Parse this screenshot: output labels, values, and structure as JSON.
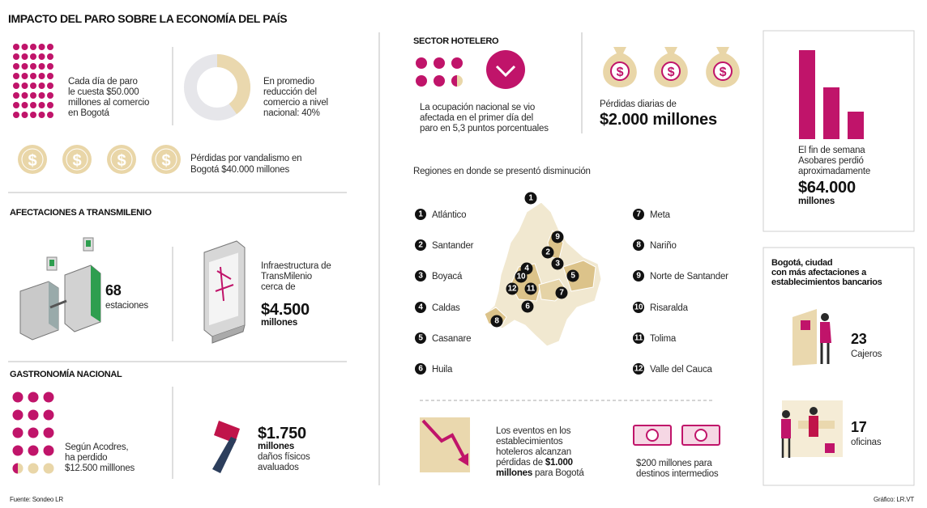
{
  "header": {
    "title": "IMPACTO DEL PARO SOBRE LA ECONOMÍA DEL PAÍS"
  },
  "commerce": {
    "daily_cost": [
      "Cada día de paro",
      "le cuesta $50.000",
      "millones al comercio",
      "en Bogotá"
    ],
    "reduction": [
      "En promedio",
      "reducción del",
      "comercio a nivel",
      "nacional: 40%"
    ],
    "vandalism": [
      "Pérdidas por vandalismo en",
      "Bogotá $40.000 millones"
    ]
  },
  "transmilenio": {
    "title": "AFECTACIONES A TRANSMILENIO",
    "stations_value": "68",
    "stations_label": "estaciones",
    "infra_text": [
      "Infraestructura de",
      "TransMilenio",
      "cerca de"
    ],
    "infra_value": "$4.500",
    "infra_unit": "millones"
  },
  "gastronomy": {
    "title": "GASTRONOMÍA NACIONAL",
    "acodres": [
      "Según Acodres,",
      "ha perdido",
      "$12.500 milllones"
    ],
    "damage_value": "$1.750",
    "damage_unit": "millones",
    "damage_text": [
      "daños físicos",
      "avaluados"
    ]
  },
  "hotel": {
    "title": "SECTOR HOTELERO",
    "occupancy": [
      "La ocupación nacional se vio",
      "afectada en el primer día del",
      "paro en 5,3 puntos porcentuales"
    ],
    "daily_label": "Pérdidas diarias de",
    "daily_value": "$2.000 millones"
  },
  "asobares": {
    "text": [
      "El fin de semana",
      "Asobares perdió",
      "aproximadamente"
    ],
    "value": "$64.000",
    "unit": "millones"
  },
  "regions": {
    "title": "Regiones en donde se presentó disminución",
    "items": [
      {
        "number": 1,
        "name": "Atlántico"
      },
      {
        "number": 2,
        "name": "Santander"
      },
      {
        "number": 3,
        "name": "Boyacá"
      },
      {
        "number": 4,
        "name": "Caldas"
      },
      {
        "number": 5,
        "name": "Casanare"
      },
      {
        "number": 6,
        "name": "Huila"
      },
      {
        "number": 7,
        "name": "Meta"
      },
      {
        "number": 8,
        "name": "Nariño"
      },
      {
        "number": 9,
        "name": "Norte de Santander"
      },
      {
        "number": 10,
        "name": "Risaralda"
      },
      {
        "number": 11,
        "name": "Tolima"
      },
      {
        "number": 12,
        "name": "Valle del Cauca"
      }
    ]
  },
  "events": {
    "lines": [
      "Los eventos en los",
      "establecimientos",
      "hoteleros alcanzan"
    ],
    "loss_prefix": "pérdidas de ",
    "loss_value": "$1.000",
    "loss_unit": "millones",
    "loss_suffix": " para Bogotá"
  },
  "destinations": {
    "lines": [
      "$200 millones  para",
      "destinos intermedios"
    ]
  },
  "banks": {
    "title": [
      "Bogotá, ciudad",
      "con más afectaciones  a",
      "establecimientos bancarios"
    ],
    "atm_value": "23",
    "atm_label": "Cajeros",
    "office_value": "17",
    "office_label": "oficinas"
  },
  "footer": {
    "source": "Fuente: Sondeo LR",
    "credit": "Gráfico: LR.VT"
  }
}
